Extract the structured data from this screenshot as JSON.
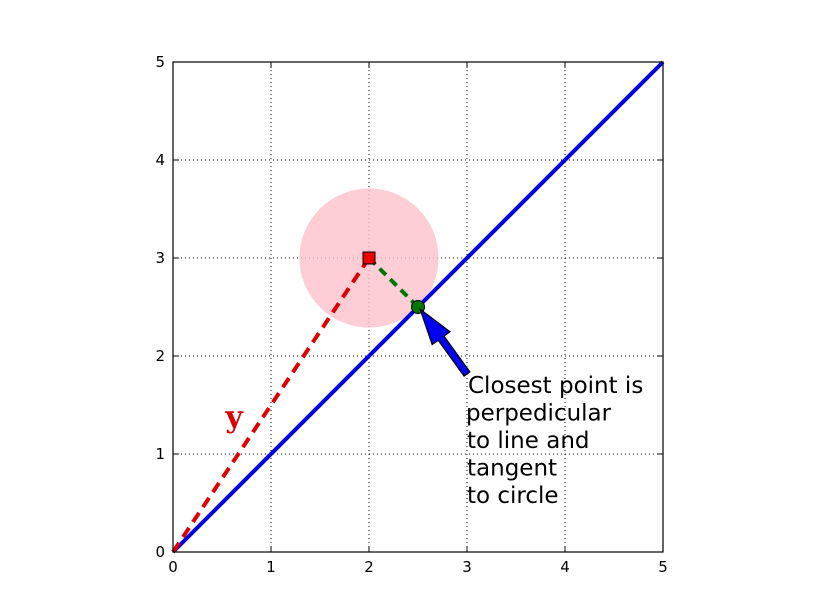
{
  "chart_data": {
    "type": "line",
    "title": "",
    "xlabel": "",
    "ylabel": "",
    "xlim": [
      0,
      5
    ],
    "ylim": [
      0,
      5
    ],
    "x_ticks": [
      "0",
      "1",
      "2",
      "3",
      "4",
      "5"
    ],
    "y_ticks": [
      "0",
      "1",
      "2",
      "3",
      "4",
      "5"
    ],
    "grid": true,
    "grid_style": "dotted",
    "line": {
      "x": [
        0,
        5
      ],
      "y": [
        0,
        5
      ],
      "color": "#0000dd"
    },
    "vector_y": {
      "x": [
        0,
        2
      ],
      "y": [
        0,
        3
      ],
      "label": "y",
      "color": "#dd0000",
      "style": "dashed"
    },
    "point_y": {
      "x": 2,
      "y": 3,
      "marker": "square",
      "color": "#ee0000"
    },
    "circle": {
      "center": [
        2,
        3
      ],
      "radius": 0.71,
      "color": "#ffc0cb"
    },
    "projection_segment": {
      "x": [
        2,
        2.5
      ],
      "y": [
        3,
        2.5
      ],
      "color": "#007700",
      "style": "dashed"
    },
    "closest_point": {
      "x": 2.5,
      "y": 2.5,
      "marker": "circle",
      "color": "#007700"
    },
    "annotation": {
      "lines": [
        "Closest point is",
        "perpedicular",
        "to line and",
        "tangent",
        "to circle"
      ],
      "arrow_target": [
        2.5,
        2.5
      ],
      "arrow_color": "#0000ee"
    }
  }
}
